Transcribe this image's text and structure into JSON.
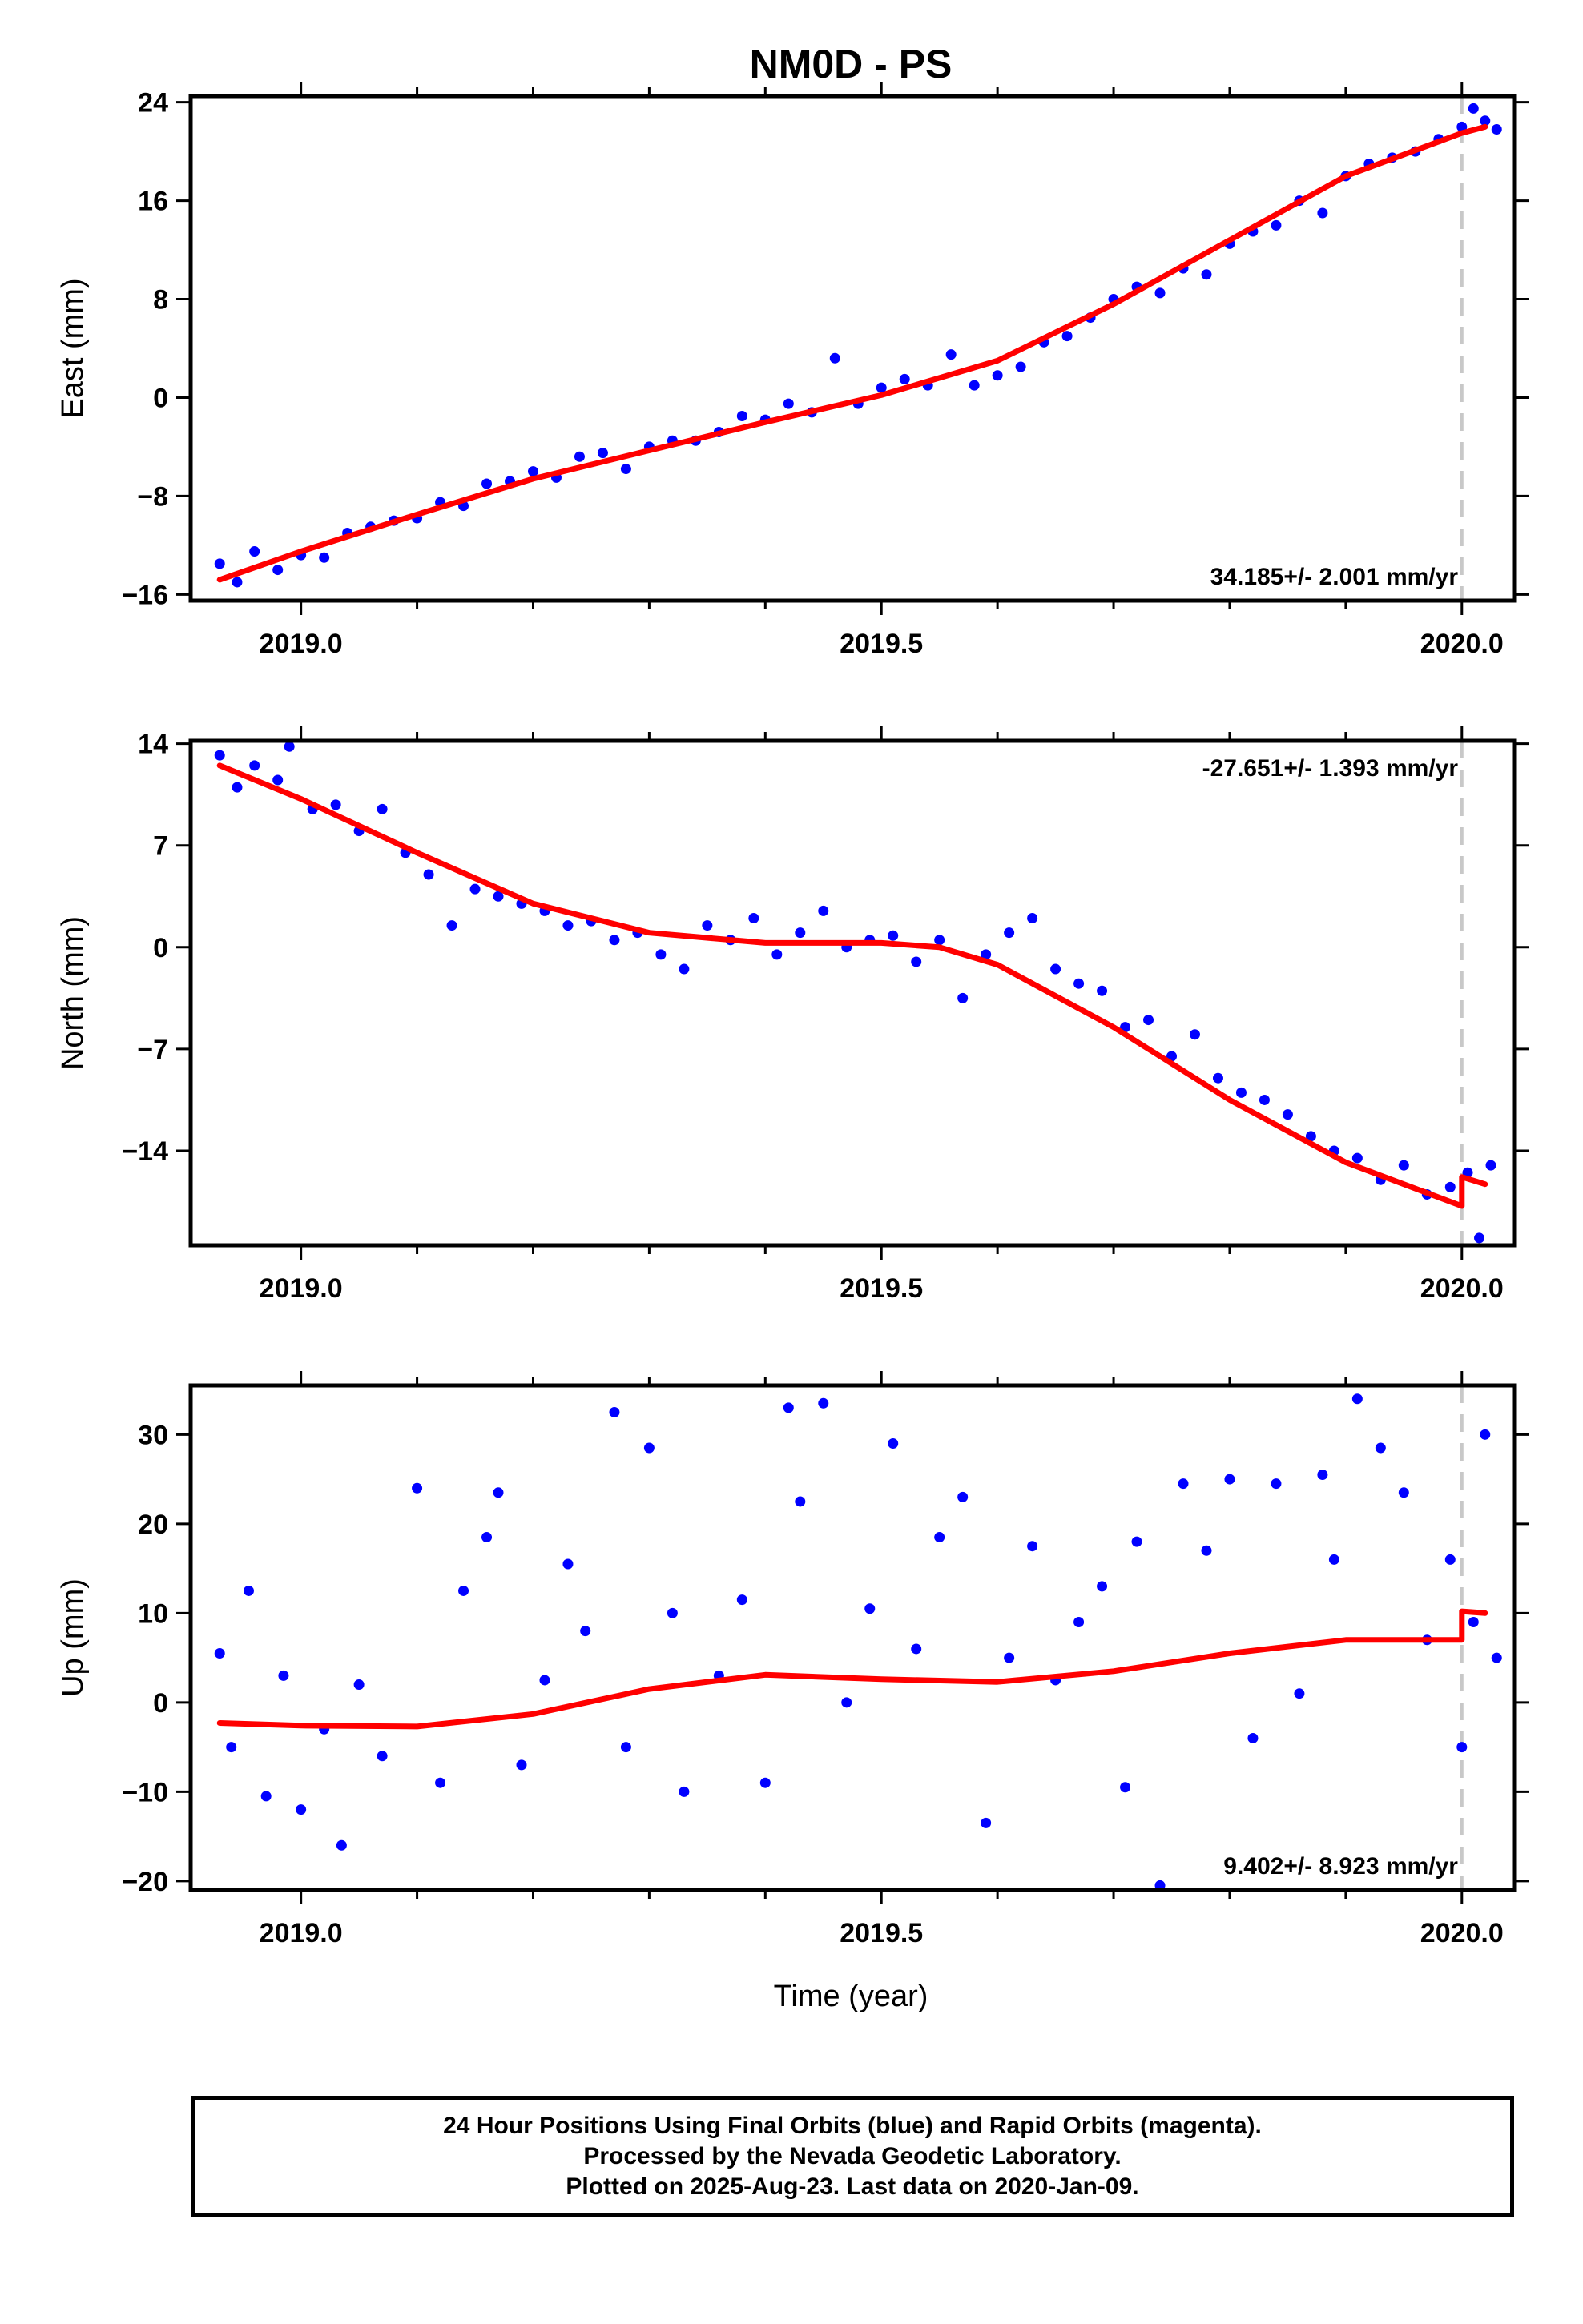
{
  "figure": {
    "title": "NM0D - PS",
    "xlabel": "Time (year)",
    "footer": [
      "24 Hour Positions Using Final Orbits (blue) and Rapid Orbits (magenta).",
      "Processed by the Nevada Geodetic Laboratory.",
      "Plotted on 2025-Aug-23. Last data on 2020-Jan-09."
    ],
    "colors": {
      "data": "#0000ff",
      "model": "#ff0000",
      "marker": "#c8c8c8",
      "frame": "#000000"
    }
  },
  "chart_data": [
    {
      "type": "scatter",
      "component": "east",
      "ylabel": "East (mm)",
      "rate_label": "34.185+/- 2.001 mm/yr",
      "xlim": [
        2018.905,
        2020.045
      ],
      "ylim": [
        -16.5,
        24.5
      ],
      "yticks": [
        -16,
        -8,
        0,
        8,
        16,
        24
      ],
      "xticks": [
        "2019.0",
        "2019.5",
        "2020.0"
      ],
      "marker_x": 2020.0,
      "model": {
        "x": [
          2018.93,
          2019.0,
          2019.1,
          2019.2,
          2019.3,
          2019.4,
          2019.5,
          2019.6,
          2019.7,
          2019.8,
          2019.9,
          2020.0,
          2020.02
        ],
        "y": [
          -14.8,
          -12.5,
          -9.5,
          -6.6,
          -4.3,
          -2.0,
          0.2,
          3.0,
          7.6,
          12.8,
          18.0,
          21.5,
          22.0
        ]
      },
      "data": {
        "x": [
          2018.93,
          2018.945,
          2018.96,
          2018.98,
          2019.0,
          2019.02,
          2019.04,
          2019.06,
          2019.08,
          2019.1,
          2019.12,
          2019.14,
          2019.16,
          2019.18,
          2019.2,
          2019.22,
          2019.24,
          2019.26,
          2019.28,
          2019.3,
          2019.32,
          2019.34,
          2019.36,
          2019.38,
          2019.4,
          2019.42,
          2019.44,
          2019.46,
          2019.48,
          2019.5,
          2019.52,
          2019.54,
          2019.56,
          2019.58,
          2019.6,
          2019.62,
          2019.64,
          2019.66,
          2019.68,
          2019.7,
          2019.72,
          2019.74,
          2019.76,
          2019.78,
          2019.8,
          2019.82,
          2019.84,
          2019.86,
          2019.88,
          2019.9,
          2019.92,
          2019.94,
          2019.96,
          2019.98,
          2020.0,
          2020.01,
          2020.02,
          2020.03
        ],
        "y": [
          -13.5,
          -15.0,
          -12.5,
          -14.0,
          -12.8,
          -13.0,
          -11.0,
          -10.5,
          -10.0,
          -9.8,
          -8.5,
          -8.8,
          -7.0,
          -6.8,
          -6.0,
          -6.5,
          -4.8,
          -4.5,
          -5.8,
          -4.0,
          -3.5,
          -3.5,
          -2.8,
          -1.5,
          -1.8,
          -0.5,
          -1.2,
          3.2,
          -0.5,
          0.8,
          1.5,
          1.0,
          3.5,
          1.0,
          1.8,
          2.5,
          4.5,
          5.0,
          6.5,
          8.0,
          9.0,
          8.5,
          10.5,
          10.0,
          12.5,
          13.5,
          14.0,
          16.0,
          15.0,
          18.0,
          19.0,
          19.5,
          20.0,
          21.0,
          22.0,
          23.5,
          22.5,
          21.8
        ]
      }
    },
    {
      "type": "scatter",
      "component": "north",
      "ylabel": "North (mm)",
      "rate_label": "-27.651+/- 1.393 mm/yr",
      "xlim": [
        2018.905,
        2020.045
      ],
      "ylim": [
        -20.5,
        14.2
      ],
      "yticks": [
        -14,
        -7,
        0,
        7,
        14
      ],
      "xticks": [
        "2019.0",
        "2019.5",
        "2020.0"
      ],
      "marker_x": 2020.0,
      "model": {
        "x": [
          2018.93,
          2019.0,
          2019.1,
          2019.2,
          2019.3,
          2019.4,
          2019.5,
          2019.55,
          2019.6,
          2019.7,
          2019.8,
          2019.9,
          2020.0,
          2020.0,
          2020.02
        ],
        "y": [
          12.5,
          10.2,
          6.5,
          3.0,
          1.0,
          0.3,
          0.3,
          0.0,
          -1.2,
          -5.5,
          -10.5,
          -14.8,
          -17.8,
          -15.8,
          -16.3
        ]
      },
      "data": {
        "x": [
          2018.93,
          2018.945,
          2018.96,
          2018.98,
          2018.99,
          2019.01,
          2019.03,
          2019.05,
          2019.07,
          2019.09,
          2019.11,
          2019.13,
          2019.15,
          2019.17,
          2019.19,
          2019.21,
          2019.23,
          2019.25,
          2019.27,
          2019.29,
          2019.31,
          2019.33,
          2019.35,
          2019.37,
          2019.39,
          2019.41,
          2019.43,
          2019.45,
          2019.47,
          2019.49,
          2019.51,
          2019.53,
          2019.55,
          2019.57,
          2019.59,
          2019.61,
          2019.63,
          2019.65,
          2019.67,
          2019.69,
          2019.71,
          2019.73,
          2019.75,
          2019.77,
          2019.79,
          2019.81,
          2019.83,
          2019.85,
          2019.87,
          2019.89,
          2019.91,
          2019.93,
          2019.95,
          2019.97,
          2019.99,
          2020.005,
          2020.015,
          2020.025
        ],
        "y": [
          13.2,
          11.0,
          12.5,
          11.5,
          13.8,
          9.5,
          9.8,
          8.0,
          9.5,
          6.5,
          5.0,
          1.5,
          4.0,
          3.5,
          3.0,
          2.5,
          1.5,
          1.8,
          0.5,
          1.0,
          -0.5,
          -1.5,
          1.5,
          0.5,
          2.0,
          -0.5,
          1.0,
          2.5,
          0.0,
          0.5,
          0.8,
          -1.0,
          0.5,
          -3.5,
          -0.5,
          1.0,
          2.0,
          -1.5,
          -2.5,
          -3.0,
          -5.5,
          -5.0,
          -7.5,
          -6.0,
          -9.0,
          -10.0,
          -10.5,
          -11.5,
          -13.0,
          -14.0,
          -14.5,
          -16.0,
          -15.0,
          -17.0,
          -16.5,
          -15.5,
          -20.0,
          -15.0
        ]
      }
    },
    {
      "type": "scatter",
      "component": "up",
      "ylabel": "Up (mm)",
      "rate_label": "9.402+/- 8.923 mm/yr",
      "xlim": [
        2018.905,
        2020.045
      ],
      "ylim": [
        -21.0,
        35.5
      ],
      "yticks": [
        -20,
        -10,
        0,
        10,
        20,
        30
      ],
      "xticks": [
        "2019.0",
        "2019.5",
        "2020.0"
      ],
      "marker_x": 2020.0,
      "model": {
        "x": [
          2018.93,
          2019.0,
          2019.1,
          2019.2,
          2019.3,
          2019.4,
          2019.5,
          2019.6,
          2019.7,
          2019.8,
          2019.9,
          2020.0,
          2020.0,
          2020.02
        ],
        "y": [
          -2.3,
          -2.6,
          -2.7,
          -1.3,
          1.5,
          3.1,
          2.6,
          2.3,
          3.5,
          5.5,
          7.0,
          7.0,
          10.2,
          10.0
        ]
      },
      "data": {
        "x": [
          2018.93,
          2018.94,
          2018.955,
          2018.97,
          2018.985,
          2019.0,
          2019.02,
          2019.035,
          2019.05,
          2019.07,
          2019.1,
          2019.12,
          2019.14,
          2019.16,
          2019.17,
          2019.19,
          2019.21,
          2019.23,
          2019.245,
          2019.27,
          2019.28,
          2019.3,
          2019.32,
          2019.33,
          2019.36,
          2019.38,
          2019.4,
          2019.42,
          2019.43,
          2019.45,
          2019.47,
          2019.49,
          2019.51,
          2019.53,
          2019.55,
          2019.57,
          2019.59,
          2019.61,
          2019.63,
          2019.65,
          2019.67,
          2019.69,
          2019.71,
          2019.72,
          2019.74,
          2019.76,
          2019.78,
          2019.8,
          2019.82,
          2019.84,
          2019.86,
          2019.88,
          2019.89,
          2019.91,
          2019.93,
          2019.95,
          2019.97,
          2019.99,
          2020.0,
          2020.01,
          2020.02,
          2020.03
        ],
        "y": [
          5.5,
          -5.0,
          12.5,
          -10.5,
          3.0,
          -12.0,
          -3.0,
          -16.0,
          2.0,
          -6.0,
          24.0,
          -9.0,
          12.5,
          18.5,
          23.5,
          -7.0,
          2.5,
          15.5,
          8.0,
          32.5,
          -5.0,
          28.5,
          10.0,
          -10.0,
          3.0,
          11.5,
          -9.0,
          33.0,
          22.5,
          33.5,
          0.0,
          10.5,
          29.0,
          6.0,
          18.5,
          23.0,
          -13.5,
          5.0,
          17.5,
          2.5,
          9.0,
          13.0,
          -9.5,
          18.0,
          -20.5,
          24.5,
          17.0,
          25.0,
          -4.0,
          24.5,
          1.0,
          25.5,
          16.0,
          34.0,
          28.5,
          23.5,
          7.0,
          16.0,
          -5.0,
          9.0,
          30.0,
          5.0
        ]
      }
    }
  ]
}
